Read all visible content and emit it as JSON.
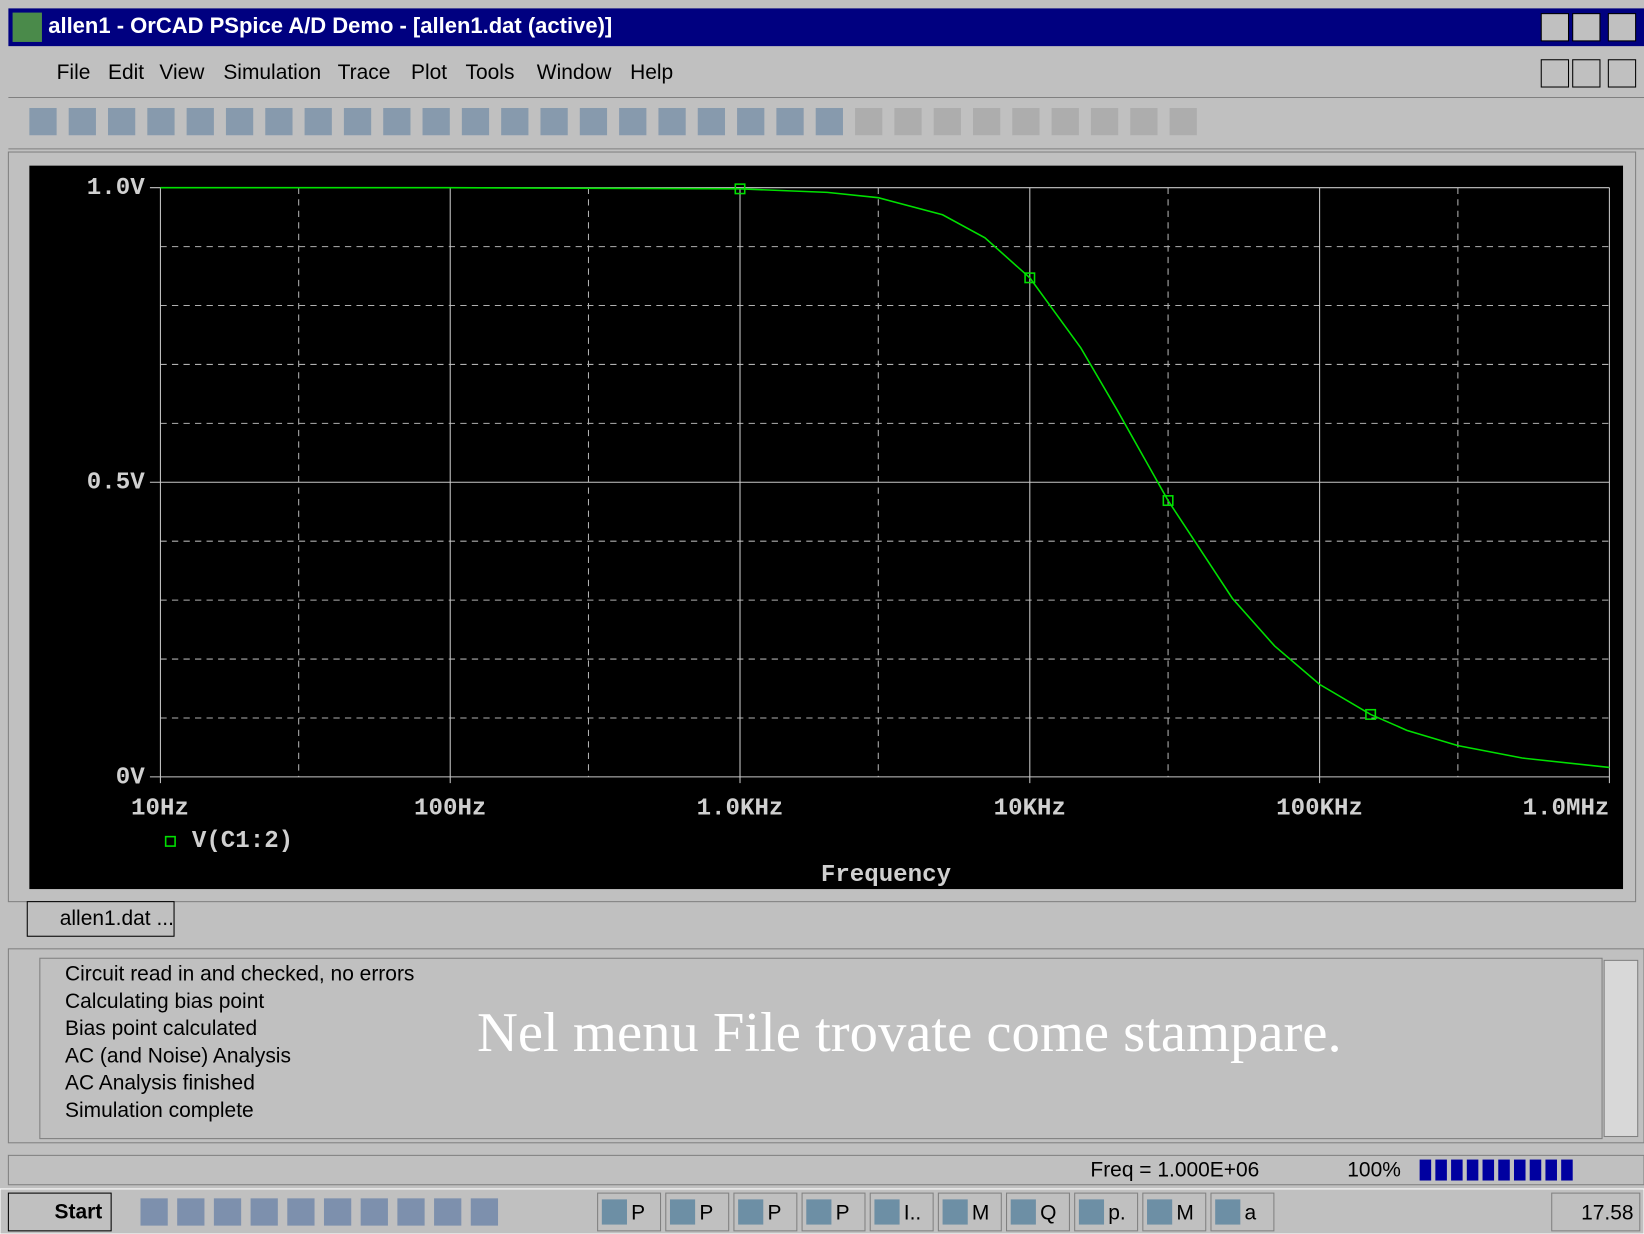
{
  "window": {
    "title": "allen1 - OrCAD PSpice A/D Demo  - [allen1.dat (active)]"
  },
  "menu": {
    "items": [
      "File",
      "Edit",
      "View",
      "Simulation",
      "Trace",
      "Plot",
      "Tools",
      "Window",
      "Help"
    ]
  },
  "chart_data": {
    "type": "line",
    "x_label": "Frequency",
    "log_x": true,
    "grid": true,
    "x": [
      10,
      100,
      1000,
      2000,
      3000,
      5000,
      7000,
      10000,
      15000,
      20000,
      30000,
      50000,
      70000,
      100000,
      150000,
      200000,
      300000,
      500000,
      1000000
    ],
    "series": [
      {
        "name": "V(C1:2)",
        "color": "#00e000",
        "values": [
          1.0,
          1.0,
          0.998,
          0.992,
          0.983,
          0.954,
          0.915,
          0.847,
          0.728,
          0.623,
          0.469,
          0.303,
          0.222,
          0.157,
          0.106,
          0.079,
          0.053,
          0.032,
          0.016
        ]
      }
    ],
    "xlim": [
      10,
      1000000
    ],
    "xticks": [
      {
        "value": 10,
        "label": "10Hz"
      },
      {
        "value": 100,
        "label": "100Hz"
      },
      {
        "value": 1000,
        "label": "1.0KHz"
      },
      {
        "value": 10000,
        "label": "10KHz"
      },
      {
        "value": 100000,
        "label": "100KHz"
      },
      {
        "value": 1000000,
        "label": "1.0MHz"
      }
    ],
    "xticks_minor": [
      30,
      300,
      3000,
      30000,
      300000
    ],
    "ylim": [
      0,
      1
    ],
    "yticks": [
      {
        "value": 0,
        "label": "0V"
      },
      {
        "value": 0.5,
        "label": "0.5V"
      },
      {
        "value": 1,
        "label": "1.0V"
      }
    ],
    "yticks_minor": [
      0.1,
      0.2,
      0.3,
      0.4,
      0.6,
      0.7,
      0.8,
      0.9
    ]
  },
  "tab": {
    "label": "allen1.dat ..."
  },
  "log": {
    "lines": [
      "Circuit read in and checked, no errors",
      "Calculating bias point",
      "Bias point calculated",
      "AC (and Noise) Analysis",
      "AC Analysis finished",
      "Simulation complete"
    ]
  },
  "overlay": {
    "text": "Nel menu File trovate come stampare."
  },
  "status": {
    "freq": "Freq = 1.000E+06",
    "zoom": "100%"
  },
  "taskbar": {
    "start": "Start",
    "buttons": [
      "P",
      "P",
      "P",
      "P",
      "I..",
      "M",
      "Q",
      "p.",
      "M",
      "a"
    ],
    "clock": "17.58"
  }
}
